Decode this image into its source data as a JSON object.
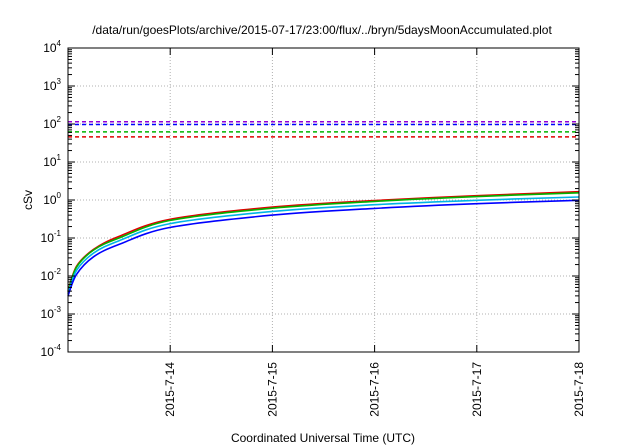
{
  "chart_data": {
    "type": "line",
    "title": "/data/run/goesPlots/archive/2015-07-17/23:00/flux/../bryn/5daysMoonAccumulated.plot",
    "xlabel": "Coordinated Universal Time (UTC)",
    "ylabel": "cSv",
    "y_scale": "log",
    "ylim": [
      0.0001,
      10000
    ],
    "y_ticks": [
      {
        "base": "10",
        "exp": "-4",
        "value": 0.0001
      },
      {
        "base": "10",
        "exp": "-3",
        "value": 0.001
      },
      {
        "base": "10",
        "exp": "-2",
        "value": 0.01
      },
      {
        "base": "10",
        "exp": "-1",
        "value": 0.1
      },
      {
        "base": "10",
        "exp": "0",
        "value": 1
      },
      {
        "base": "10",
        "exp": "1",
        "value": 10
      },
      {
        "base": "10",
        "exp": "2",
        "value": 100
      },
      {
        "base": "10",
        "exp": "3",
        "value": 1000
      },
      {
        "base": "10",
        "exp": "4",
        "value": 10000
      }
    ],
    "xlim": [
      "2015-07-13",
      "2015-07-18"
    ],
    "x_ticks": [
      "2015-7-14",
      "2015-7-15",
      "2015-7-16",
      "2015-7-17",
      "2015-7-18"
    ],
    "grid": true,
    "legend": "none",
    "threshold_lines": [
      {
        "color": "#9400d3",
        "value": 115
      },
      {
        "color": "#0000ff",
        "value": 97
      },
      {
        "color": "#00b400",
        "value": 62
      },
      {
        "color": "#e00000",
        "value": 46
      }
    ],
    "series": [
      {
        "color": "#e00000",
        "x": [
          "2015-07-13",
          "2015-07-13 02:00",
          "2015-07-13 06:00",
          "2015-07-13 12:00",
          "2015-07-14",
          "2015-07-15",
          "2015-07-16",
          "2015-07-17",
          "2015-07-18"
        ],
        "values": [
          0.004,
          0.018,
          0.05,
          0.11,
          0.31,
          0.65,
          0.97,
          1.3,
          1.65
        ]
      },
      {
        "color": "#00b400",
        "x": [
          "2015-07-13",
          "2015-07-13 02:00",
          "2015-07-13 06:00",
          "2015-07-13 12:00",
          "2015-07-14",
          "2015-07-15",
          "2015-07-16",
          "2015-07-17",
          "2015-07-18"
        ],
        "values": [
          0.0038,
          0.017,
          0.048,
          0.1,
          0.29,
          0.61,
          0.92,
          1.23,
          1.55
        ]
      },
      {
        "color": "#00b4e6",
        "x": [
          "2015-07-13",
          "2015-07-13 02:00",
          "2015-07-13 06:00",
          "2015-07-13 12:00",
          "2015-07-14",
          "2015-07-15",
          "2015-07-16",
          "2015-07-17",
          "2015-07-18"
        ],
        "values": [
          0.0034,
          0.014,
          0.04,
          0.085,
          0.24,
          0.5,
          0.75,
          0.98,
          1.2
        ]
      },
      {
        "color": "#0000ff",
        "x": [
          "2015-07-13",
          "2015-07-13 02:00",
          "2015-07-13 06:00",
          "2015-07-13 12:00",
          "2015-07-14",
          "2015-07-15",
          "2015-07-16",
          "2015-07-17",
          "2015-07-18"
        ],
        "values": [
          0.003,
          0.011,
          0.032,
          0.068,
          0.19,
          0.4,
          0.6,
          0.8,
          0.98
        ]
      }
    ]
  }
}
